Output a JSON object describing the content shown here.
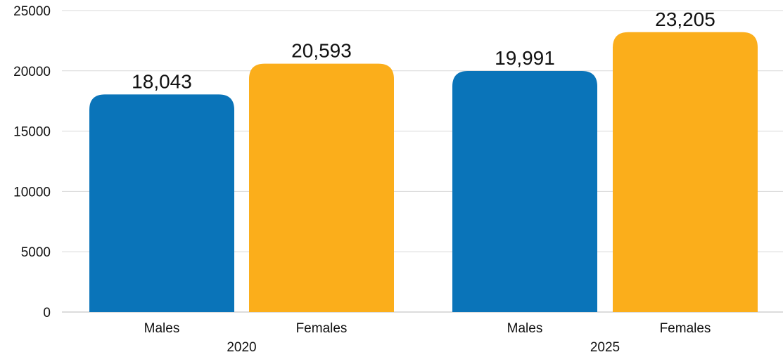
{
  "chart_data": {
    "type": "bar",
    "title": "",
    "xlabel": "",
    "ylabel": "",
    "ylim": [
      0,
      25000
    ],
    "yticks": [
      0,
      5000,
      10000,
      15000,
      20000,
      25000
    ],
    "grid": true,
    "legend": "none",
    "groups": [
      {
        "label": "2020",
        "bars": [
          {
            "category": "Males",
            "value": 18043,
            "value_label": "18,043",
            "color": "#0a74b9"
          },
          {
            "category": "Females",
            "value": 20593,
            "value_label": "20,593",
            "color": "#fbae1b"
          }
        ]
      },
      {
        "label": "2025",
        "bars": [
          {
            "category": "Males",
            "value": 19991,
            "value_label": "19,991",
            "color": "#0a74b9"
          },
          {
            "category": "Females",
            "value": 23205,
            "value_label": "23,205",
            "color": "#fbae1b"
          }
        ]
      }
    ]
  }
}
